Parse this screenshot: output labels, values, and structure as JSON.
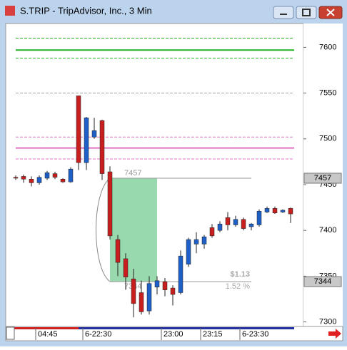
{
  "window": {
    "title": "S.TRIP - TripAdvisor, Inc., 3 Min"
  },
  "chart_data": {
    "type": "candlestick",
    "categories": [
      null,
      null,
      null,
      "04:45",
      null,
      null,
      null,
      null,
      null,
      "6-22:30",
      null,
      null,
      null,
      null,
      null,
      null,
      null,
      null,
      null,
      "23:00",
      null,
      null,
      null,
      null,
      "23:15",
      null,
      null,
      null,
      null,
      "6-23:30",
      null,
      null,
      null,
      null,
      null,
      null
    ],
    "open": [
      7458,
      7459,
      7456,
      7452,
      7457,
      7462,
      7456,
      7453,
      7547,
      7474,
      7502,
      7520,
      7464,
      7390,
      7369,
      7347,
      7332,
      7312,
      7338,
      7344,
      7337,
      7332,
      7363,
      7385,
      7385,
      7403,
      7400,
      7414,
      7406,
      7412,
      7404,
      7406,
      7420,
      7424,
      7420,
      7424
    ],
    "high": [
      7460,
      7461,
      7459,
      7460,
      7465,
      7464,
      7457,
      7469,
      7547,
      7524,
      7523,
      7521,
      7470,
      7395,
      7375,
      7358,
      7345,
      7350,
      7350,
      7348,
      7340,
      7378,
      7392,
      7398,
      7395,
      7407,
      7410,
      7420,
      7416,
      7414,
      7408,
      7423,
      7426,
      7426,
      7423,
      7425
    ],
    "low": [
      7455,
      7452,
      7448,
      7450,
      7455,
      7456,
      7452,
      7452,
      7466,
      7466,
      7500,
      7455,
      7390,
      7350,
      7335,
      7305,
      7308,
      7308,
      7330,
      7328,
      7318,
      7330,
      7360,
      7375,
      7380,
      7392,
      7398,
      7400,
      7404,
      7400,
      7400,
      7404,
      7419,
      7418,
      7419,
      7408
    ],
    "close": [
      7457,
      7456,
      7452,
      7458,
      7463,
      7458,
      7453,
      7467,
      7474,
      7523,
      7509,
      7462,
      7394,
      7365,
      7349,
      7320,
      7311,
      7342,
      7345,
      7335,
      7330,
      7372,
      7390,
      7390,
      7393,
      7394,
      7407,
      7406,
      7412,
      7402,
      7407,
      7421,
      7424,
      7419,
      7422,
      7418
    ],
    "up_color": "#1e5fc8",
    "down_color": "#c81e1e",
    "ylim": [
      7295,
      7626
    ],
    "yticks": [
      7300,
      7350,
      7400,
      7450,
      7500,
      7550,
      7600
    ],
    "levels": [
      {
        "value": 7610,
        "color": "#22b022",
        "dashed": true
      },
      {
        "value": 7597,
        "color": "#22b022",
        "dashed": false
      },
      {
        "value": 7588,
        "color": "#22b022",
        "dashed": true
      },
      {
        "value": 7550,
        "color": "#a0a0a0",
        "dashed": true
      },
      {
        "value": 7502,
        "color": "#e070c0",
        "dashed": true
      },
      {
        "value": 7490,
        "color": "#e070c0",
        "dashed": false
      },
      {
        "value": 7478,
        "color": "#e070c0",
        "dashed": true
      }
    ],
    "measure": {
      "from": 7457,
      "to": 7344,
      "change": "$1.13",
      "percent": "1.52 %"
    }
  }
}
